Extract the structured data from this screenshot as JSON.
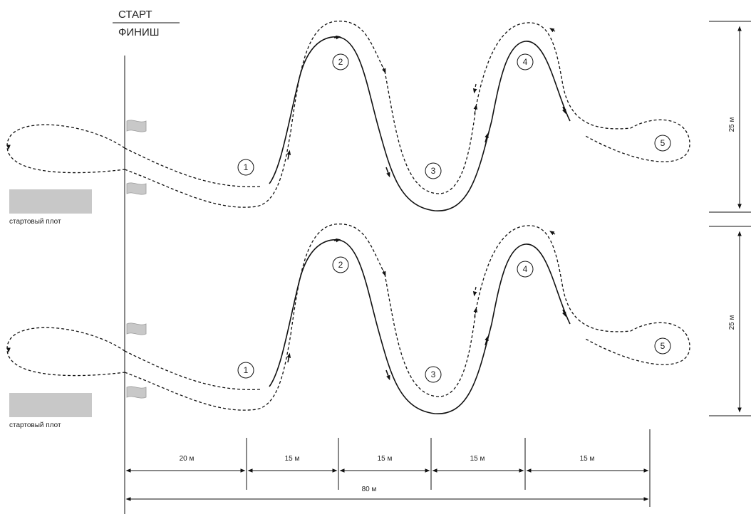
{
  "header": {
    "start": "СТАРТ",
    "finish": "ФИНИШ"
  },
  "raft_label": "стартовый плот",
  "buoys": [
    "1",
    "2",
    "3",
    "4",
    "5"
  ],
  "distances": [
    "20 м",
    "15 м",
    "15 м",
    "15 м",
    "15 м"
  ],
  "total_distance": "80 м",
  "heights": [
    "25 м",
    "25 м"
  ]
}
